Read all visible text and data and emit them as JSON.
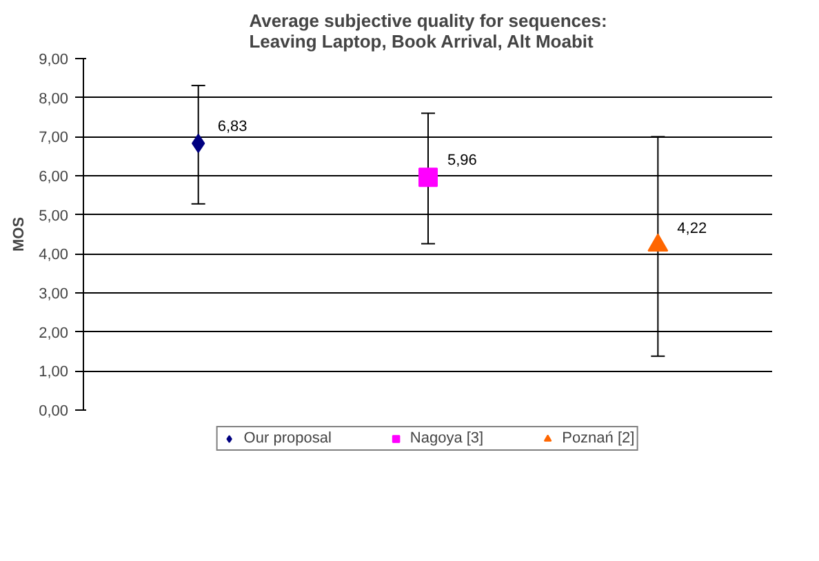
{
  "chart_data": {
    "type": "scatter",
    "title": "Average subjective quality for sequences:\nLeaving Laptop, Book Arrival, Alt Moabit",
    "ylabel": "MOS",
    "categories": [
      null,
      null,
      null
    ],
    "ylim": [
      0,
      9
    ],
    "yticks": [
      {
        "value": 0,
        "label": "0,00"
      },
      {
        "value": 1,
        "label": "1,00"
      },
      {
        "value": 2,
        "label": "2,00"
      },
      {
        "value": 3,
        "label": "3,00"
      },
      {
        "value": 4,
        "label": "4,00"
      },
      {
        "value": 5,
        "label": "5,00"
      },
      {
        "value": 6,
        "label": "6,00"
      },
      {
        "value": 7,
        "label": "7,00"
      },
      {
        "value": 8,
        "label": "8,00"
      },
      {
        "value": 9,
        "label": "9,00"
      }
    ],
    "grid": "y",
    "legend": "bottom",
    "series": [
      {
        "name": "Our proposal",
        "color": "#000080",
        "marker": "diamond",
        "values": [
          6.83,
          null,
          null
        ],
        "errors": [
          [
            5.28,
            8.31
          ],
          null,
          null
        ],
        "value_labels": [
          "6,83",
          null,
          null
        ]
      },
      {
        "name": "Nagoya [3]",
        "color": "#ff00ff",
        "marker": "square",
        "values": [
          null,
          5.96,
          null
        ],
        "errors": [
          null,
          [
            4.26,
            7.6
          ],
          null
        ],
        "value_labels": [
          null,
          "5,96",
          null
        ]
      },
      {
        "name": "Poznań [2]",
        "color": "#ff6600",
        "marker": "triangle",
        "values": [
          null,
          null,
          4.22
        ],
        "errors": [
          null,
          null,
          [
            1.38,
            7.0
          ]
        ],
        "value_labels": [
          null,
          null,
          "4,22"
        ]
      }
    ]
  }
}
